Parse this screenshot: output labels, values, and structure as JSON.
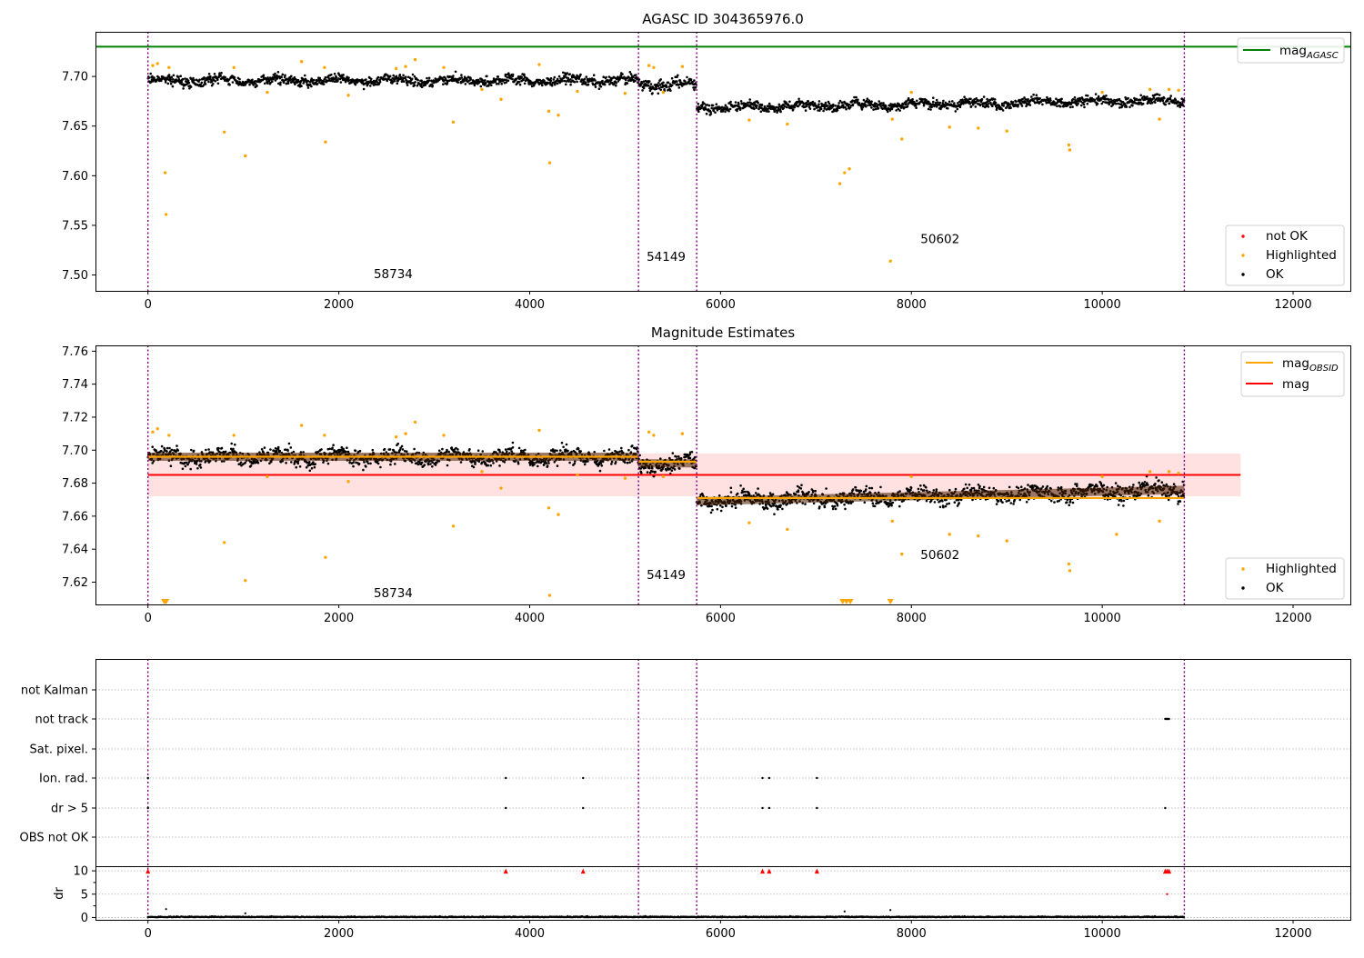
{
  "chart_data": [
    {
      "type": "scatter",
      "title": "AGASC ID 304365976.0",
      "xlim": [
        -550,
        12600
      ],
      "ylim": [
        7.484,
        7.745
      ],
      "xticks": [
        0,
        2000,
        4000,
        6000,
        8000,
        10000,
        12000
      ],
      "xtick_labels": [
        "0",
        "2000",
        "4000",
        "6000",
        "8000",
        "10000",
        "12000"
      ],
      "yticks": [
        7.5,
        7.55,
        7.6,
        7.65,
        7.7
      ],
      "ytick_labels": [
        "7.50",
        "7.55",
        "7.60",
        "7.65",
        "7.70"
      ],
      "vlines": [
        0,
        5140,
        5750,
        10860
      ],
      "colors": {
        "ok": "#000000",
        "highlighted": "#ffa500",
        "not_ok": "#ff0000",
        "agasc": "#008000",
        "vline": "#800080"
      },
      "obs_segments": [
        {
          "x": [
            0,
            5140
          ],
          "y": [
            7.696,
            7.696
          ],
          "spread": 0.012
        },
        {
          "x": [
            5140,
            5750
          ],
          "y": [
            7.692,
            7.692
          ],
          "spread": 0.014
        },
        {
          "x": [
            5750,
            10860
          ],
          "y": [
            7.669,
            7.676
          ],
          "spread": 0.012
        }
      ],
      "hlines": [
        {
          "name": "mag AGASC",
          "y": 7.73,
          "color": "#008000"
        }
      ],
      "highlighted_points": [
        [
          50,
          7.711
        ],
        [
          100,
          7.713
        ],
        [
          180,
          7.603
        ],
        [
          190,
          7.561
        ],
        [
          220,
          7.709
        ],
        [
          800,
          7.644
        ],
        [
          900,
          7.709
        ],
        [
          1020,
          7.62
        ],
        [
          1250,
          7.684
        ],
        [
          1610,
          7.715
        ],
        [
          1850,
          7.709
        ],
        [
          1860,
          7.634
        ],
        [
          2100,
          7.681
        ],
        [
          2600,
          7.708
        ],
        [
          2700,
          7.71
        ],
        [
          2800,
          7.717
        ],
        [
          3100,
          7.709
        ],
        [
          3200,
          7.654
        ],
        [
          3500,
          7.687
        ],
        [
          3700,
          7.677
        ],
        [
          4100,
          7.712
        ],
        [
          4200,
          7.665
        ],
        [
          4210,
          7.613
        ],
        [
          4300,
          7.661
        ],
        [
          4500,
          7.685
        ],
        [
          5000,
          7.683
        ],
        [
          5250,
          7.711
        ],
        [
          5300,
          7.709
        ],
        [
          5400,
          7.684
        ],
        [
          5600,
          7.71
        ],
        [
          6300,
          7.656
        ],
        [
          6700,
          7.652
        ],
        [
          7250,
          7.592
        ],
        [
          7300,
          7.603
        ],
        [
          7350,
          7.607
        ],
        [
          7780,
          7.514
        ],
        [
          7800,
          7.657
        ],
        [
          7900,
          7.637
        ],
        [
          8000,
          7.684
        ],
        [
          8400,
          7.649
        ],
        [
          8700,
          7.648
        ],
        [
          9000,
          7.645
        ],
        [
          9650,
          7.631
        ],
        [
          9660,
          7.626
        ],
        [
          10000,
          7.684
        ],
        [
          10500,
          7.687
        ],
        [
          10600,
          7.657
        ],
        [
          10700,
          7.687
        ],
        [
          10800,
          7.686
        ]
      ],
      "annotations": [
        {
          "text": "58734",
          "x": 2570,
          "y": 7.497
        },
        {
          "text": "54149",
          "x": 5430,
          "y": 7.514
        },
        {
          "text": "50602",
          "x": 8300,
          "y": 7.532
        }
      ],
      "legends": [
        {
          "position": "top-right",
          "items": [
            {
              "label": "mag",
              "sub": "AGASC",
              "kind": "line",
              "color": "#008000"
            }
          ]
        },
        {
          "position": "lower-right",
          "items": [
            {
              "label": "not OK",
              "kind": "dot",
              "color": "#ff0000"
            },
            {
              "label": "Highlighted",
              "kind": "dot",
              "color": "#ffa500"
            },
            {
              "label": "OK",
              "kind": "dot",
              "color": "#000000"
            }
          ]
        }
      ]
    },
    {
      "type": "scatter",
      "title": "Magnitude Estimates",
      "xlim": [
        -550,
        12600
      ],
      "ylim": [
        7.6065,
        7.7635
      ],
      "xticks": [
        0,
        2000,
        4000,
        6000,
        8000,
        10000,
        12000
      ],
      "xtick_labels": [
        "0",
        "2000",
        "4000",
        "6000",
        "8000",
        "10000",
        "12000"
      ],
      "yticks": [
        7.62,
        7.64,
        7.66,
        7.68,
        7.7,
        7.72,
        7.74,
        7.76
      ],
      "ytick_labels": [
        "7.62",
        "7.64",
        "7.66",
        "7.68",
        "7.70",
        "7.72",
        "7.74",
        "7.76"
      ],
      "vlines": [
        0,
        5140,
        5750,
        10860
      ],
      "colors": {
        "ok": "#000000",
        "highlighted": "#ffa500",
        "mag_obsid": "#ffa500",
        "mag": "#ff0000",
        "band": "#ffdede",
        "vline": "#800080"
      },
      "obs_segments": [
        {
          "x": [
            0,
            5140
          ],
          "y": [
            7.696,
            7.696
          ],
          "spread": 0.012
        },
        {
          "x": [
            5140,
            5750
          ],
          "y": [
            7.692,
            7.692
          ],
          "spread": 0.014
        },
        {
          "x": [
            5750,
            10860
          ],
          "y": [
            7.669,
            7.676
          ],
          "spread": 0.012
        }
      ],
      "mag_obsid_segments": [
        {
          "x": [
            0,
            5140
          ],
          "y": 7.696
        },
        {
          "x": [
            5140,
            5750
          ],
          "y": 7.693
        },
        {
          "x": [
            5750,
            10860
          ],
          "y": 7.671
        }
      ],
      "mag_line": {
        "y": 7.685,
        "x": [
          0,
          11450
        ]
      },
      "band": {
        "y": [
          7.672,
          7.698
        ],
        "x": [
          0,
          11450
        ]
      },
      "highlighted_points": [
        [
          50,
          7.711
        ],
        [
          100,
          7.713
        ],
        [
          220,
          7.709
        ],
        [
          800,
          7.644
        ],
        [
          900,
          7.709
        ],
        [
          1020,
          7.621
        ],
        [
          1250,
          7.684
        ],
        [
          1610,
          7.715
        ],
        [
          1850,
          7.709
        ],
        [
          1860,
          7.635
        ],
        [
          2100,
          7.681
        ],
        [
          2600,
          7.708
        ],
        [
          2700,
          7.71
        ],
        [
          2800,
          7.717
        ],
        [
          3100,
          7.709
        ],
        [
          3200,
          7.654
        ],
        [
          3500,
          7.687
        ],
        [
          3700,
          7.677
        ],
        [
          4100,
          7.712
        ],
        [
          4200,
          7.665
        ],
        [
          4210,
          7.612
        ],
        [
          4300,
          7.661
        ],
        [
          4500,
          7.685
        ],
        [
          5000,
          7.683
        ],
        [
          5250,
          7.711
        ],
        [
          5300,
          7.709
        ],
        [
          5400,
          7.684
        ],
        [
          5600,
          7.71
        ],
        [
          6300,
          7.656
        ],
        [
          6700,
          7.652
        ],
        [
          7800,
          7.657
        ],
        [
          7900,
          7.637
        ],
        [
          8000,
          7.684
        ],
        [
          8400,
          7.649
        ],
        [
          8700,
          7.648
        ],
        [
          9000,
          7.645
        ],
        [
          9650,
          7.631
        ],
        [
          9660,
          7.627
        ],
        [
          10000,
          7.684
        ],
        [
          10150,
          7.649
        ],
        [
          10500,
          7.687
        ],
        [
          10600,
          7.657
        ],
        [
          10700,
          7.687
        ],
        [
          10800,
          7.686
        ]
      ],
      "clipped_markers": [
        170,
        190,
        7280,
        7320,
        7360,
        7780
      ],
      "annotations": [
        {
          "text": "58734",
          "x": 2570,
          "y": 7.611
        },
        {
          "text": "54149",
          "x": 5430,
          "y": 7.622
        },
        {
          "text": "50602",
          "x": 8300,
          "y": 7.634
        }
      ],
      "legends": [
        {
          "position": "top-right",
          "items": [
            {
              "label": "mag",
              "sub": "OBSID",
              "kind": "line",
              "color": "#ffa500"
            },
            {
              "label": "mag",
              "kind": "line",
              "color": "#ff0000"
            }
          ]
        },
        {
          "position": "lower-right",
          "items": [
            {
              "label": "Highlighted",
              "kind": "dot",
              "color": "#ffa500"
            },
            {
              "label": "OK",
              "kind": "dot",
              "color": "#000000"
            }
          ]
        }
      ]
    },
    {
      "type": "scatter",
      "title": "",
      "xlim": [
        -550,
        12600
      ],
      "categories": [
        "not Kalman",
        "not track",
        "Sat. pixel.",
        "Ion. rad.",
        "dr > 5",
        "OBS not OK"
      ],
      "xticks": [
        0,
        2000,
        4000,
        6000,
        8000,
        10000,
        12000
      ],
      "xtick_labels": [
        "0",
        "2000",
        "4000",
        "6000",
        "8000",
        "10000",
        "12000"
      ],
      "vlines": [
        0,
        5140,
        5750,
        10860
      ],
      "flag_points": {
        "not track": [
          10660,
          10670,
          10680,
          10690,
          10700
        ],
        "Ion. rad.": [
          0,
          3750,
          4560,
          6440,
          6510,
          7010
        ],
        "dr > 5": [
          0,
          3750,
          4560,
          6440,
          6510,
          7010,
          10660
        ]
      },
      "dr_panel": {
        "ylabel": "dr",
        "ylim": [
          -0.5,
          10.8
        ],
        "yticks": [
          0,
          5,
          10
        ],
        "ytick_labels": [
          "0",
          "5",
          "10"
        ],
        "outlier_markers": [
          0,
          3750,
          4560,
          6440,
          6510,
          7010,
          10660,
          10680,
          10700
        ],
        "small_points": [
          [
            190,
            1.8
          ],
          [
            1020,
            0.9
          ],
          [
            7300,
            1.3
          ],
          [
            7780,
            1.6
          ],
          [
            10680,
            5.0
          ]
        ]
      }
    }
  ]
}
